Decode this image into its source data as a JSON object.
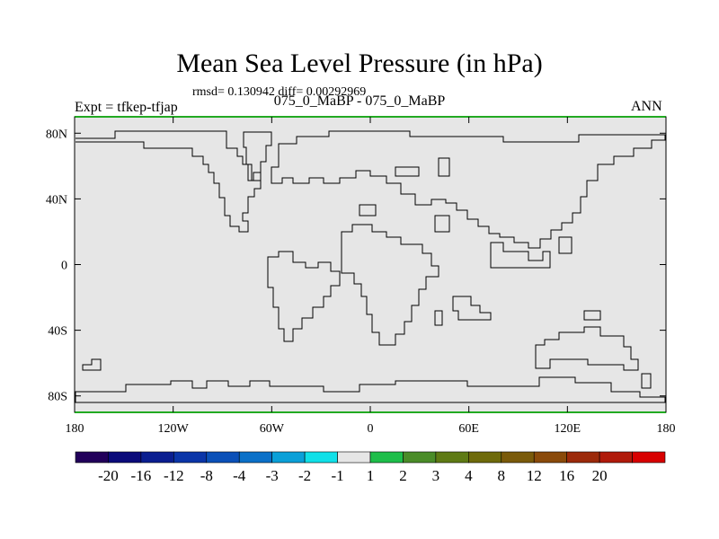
{
  "title": "Mean Sea Level Pressure (in hPa)",
  "stats": "rmsd= 0.130942 diff= 0.00292969",
  "experiment": "Expt = tfkep-tfjap",
  "center_label": "075_0_MaBP - 075_0_MaBP",
  "season": "ANN",
  "map": {
    "fill_color": "#e6e6e6",
    "coastline_color": "#000000",
    "lon_range": [
      -180,
      180
    ],
    "lat_range": [
      -90,
      90
    ]
  },
  "axes": {
    "x_ticks": [
      {
        "value": -180,
        "label": "180"
      },
      {
        "value": -120,
        "label": "120W"
      },
      {
        "value": -60,
        "label": "60W"
      },
      {
        "value": 0,
        "label": "0"
      },
      {
        "value": 60,
        "label": "60E"
      },
      {
        "value": 120,
        "label": "120E"
      },
      {
        "value": 180,
        "label": "180"
      }
    ],
    "y_ticks": [
      {
        "value": 80,
        "label": "80N"
      },
      {
        "value": 40,
        "label": "40N"
      },
      {
        "value": 0,
        "label": "0"
      },
      {
        "value": -40,
        "label": "40S"
      },
      {
        "value": -80,
        "label": "80S"
      }
    ]
  },
  "colorbar": {
    "colors": [
      "#22005a",
      "#0a0a7a",
      "#0a1e90",
      "#0a35a8",
      "#0a50b8",
      "#0a70c8",
      "#0aa0d8",
      "#10e0e8",
      "#e6e6e6",
      "#1ebe4a",
      "#4a8c28",
      "#5e7a14",
      "#6e6a0a",
      "#7a5a0a",
      "#8a4a0a",
      "#9c2a0a",
      "#b01a0a",
      "#d80000"
    ],
    "labels": [
      "-20",
      "-16",
      "-12",
      "-8",
      "-4",
      "-3",
      "-2",
      "-1",
      "1",
      "2",
      "3",
      "4",
      "8",
      "12",
      "16",
      "20"
    ]
  }
}
